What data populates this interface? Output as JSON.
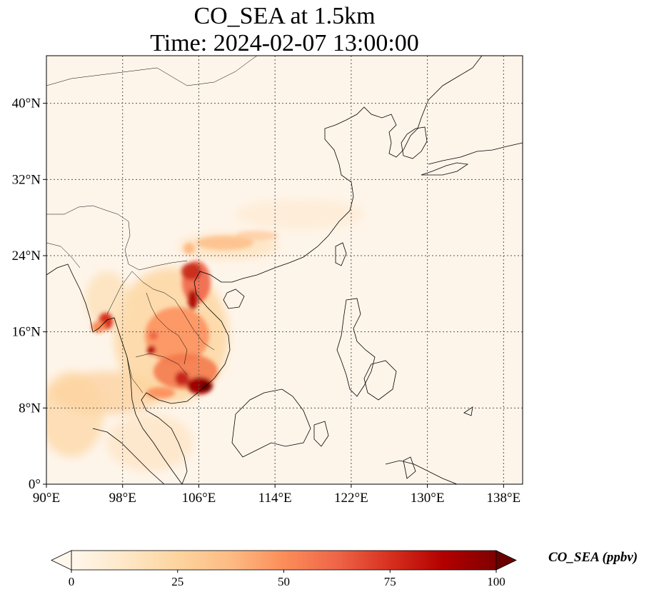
{
  "title": {
    "line1": "CO_SEA at 1.5km",
    "line2": "Time: 2024-02-07 13:00:00"
  },
  "map": {
    "lon_range": [
      90,
      140
    ],
    "lat_range": [
      0,
      45
    ],
    "lon_ticks": [
      90,
      98,
      106,
      114,
      122,
      130,
      138
    ],
    "lon_tick_labels": [
      "90°E",
      "98°E",
      "106°E",
      "114°E",
      "122°E",
      "130°E",
      "138°E"
    ],
    "lat_ticks": [
      0,
      8,
      16,
      24,
      32,
      40
    ],
    "lat_tick_labels": [
      "0°",
      "8°N",
      "16°N",
      "24°N",
      "32°N",
      "40°N"
    ],
    "gridlines": "dotted",
    "background_color": "#fef5ea",
    "coastline_color": "#000000"
  },
  "colorbar": {
    "label": "CO_SEA (ppbv)",
    "range": [
      0,
      100
    ],
    "ticks": [
      0,
      25,
      50,
      75,
      100
    ],
    "tick_labels": [
      "0",
      "25",
      "50",
      "75",
      "100"
    ],
    "extend": "both",
    "colormap": "OrRd",
    "colors": [
      "#fff7ec",
      "#fee8c8",
      "#fdd49e",
      "#fdbb84",
      "#fc8d59",
      "#ef6548",
      "#d7301f",
      "#b30000",
      "#7f0000"
    ]
  }
}
